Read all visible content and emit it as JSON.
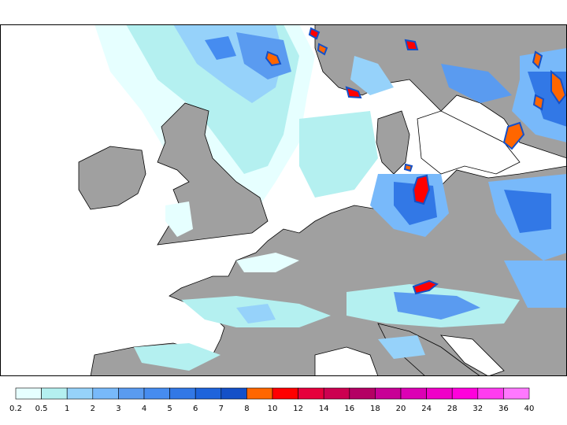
{
  "legend": {
    "colors": [
      "#e6ffff",
      "#b4f0f0",
      "#96d2fa",
      "#78b9fa",
      "#5a9bf0",
      "#468cf0",
      "#3278e6",
      "#1e64dc",
      "#1450c8",
      "#ff6600",
      "#ff0000",
      "#e6003c",
      "#cc0050",
      "#b40064",
      "#c80096",
      "#dc00b4",
      "#f000c8",
      "#ff00dc",
      "#ff3cf0",
      "#ff78ff"
    ],
    "ticks": [
      "0.2",
      "0.5",
      "1",
      "2",
      "3",
      "4",
      "5",
      "6",
      "7",
      "8",
      "10",
      "12",
      "14",
      "16",
      "18",
      "20",
      "24",
      "28",
      "32",
      "36",
      "40"
    ]
  },
  "colors": {
    "land": "#a0a0a0",
    "sea": "#ffffff",
    "border": "#000000"
  }
}
